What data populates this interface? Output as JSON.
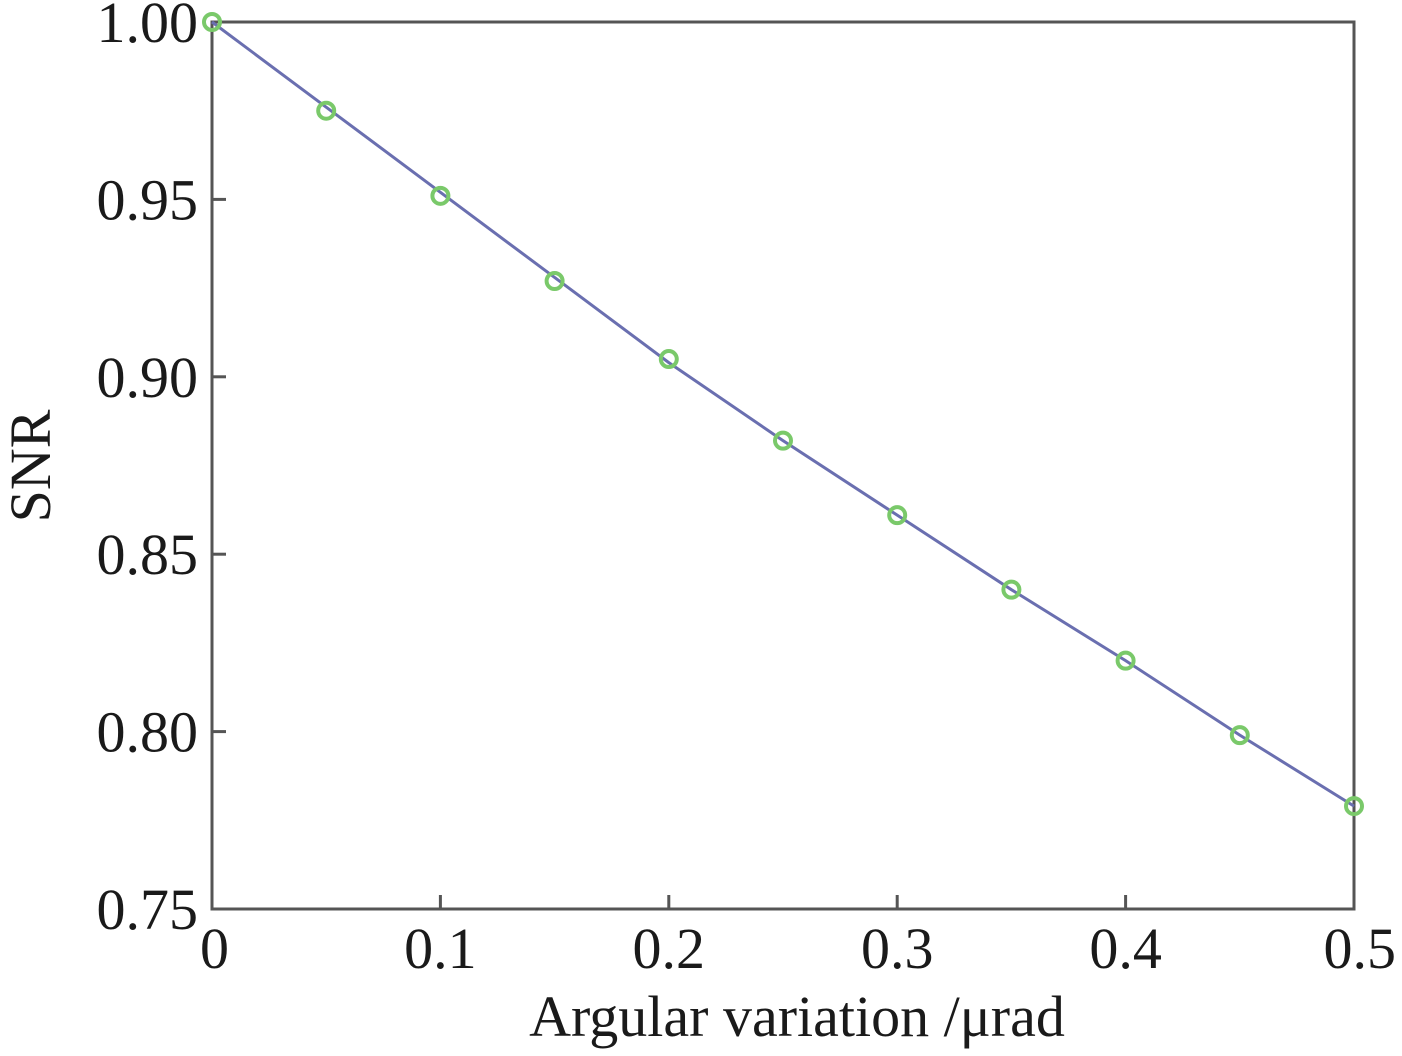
{
  "chart_data": {
    "type": "line",
    "title": "",
    "xlabel": "Argular variation /μrad",
    "ylabel": "SNR",
    "xlim": [
      0,
      0.5
    ],
    "ylim": [
      0.75,
      1.0
    ],
    "x_ticks": [
      "0",
      "0.1",
      "0.2",
      "0.3",
      "0.4",
      "0.5"
    ],
    "y_ticks": [
      "0.75",
      "0.80",
      "0.85",
      "0.90",
      "0.95",
      "1.00"
    ],
    "grid": false,
    "legend": "none",
    "series": [
      {
        "style": "line",
        "color": "#6a6fb0",
        "x": [
          0,
          0.05,
          0.1,
          0.15,
          0.2,
          0.25,
          0.3,
          0.35,
          0.4,
          0.45,
          0.5
        ],
        "y": [
          1.0,
          0.976,
          0.952,
          0.928,
          0.904,
          0.882,
          0.861,
          0.84,
          0.82,
          0.799,
          0.779
        ]
      },
      {
        "style": "markers",
        "marker": "circle",
        "color": "#7ac96a",
        "x": [
          0,
          0.05,
          0.1,
          0.15,
          0.2,
          0.25,
          0.3,
          0.35,
          0.4,
          0.45,
          0.5
        ],
        "y": [
          1.0,
          0.975,
          0.951,
          0.927,
          0.905,
          0.882,
          0.861,
          0.84,
          0.82,
          0.799,
          0.779
        ]
      }
    ]
  }
}
